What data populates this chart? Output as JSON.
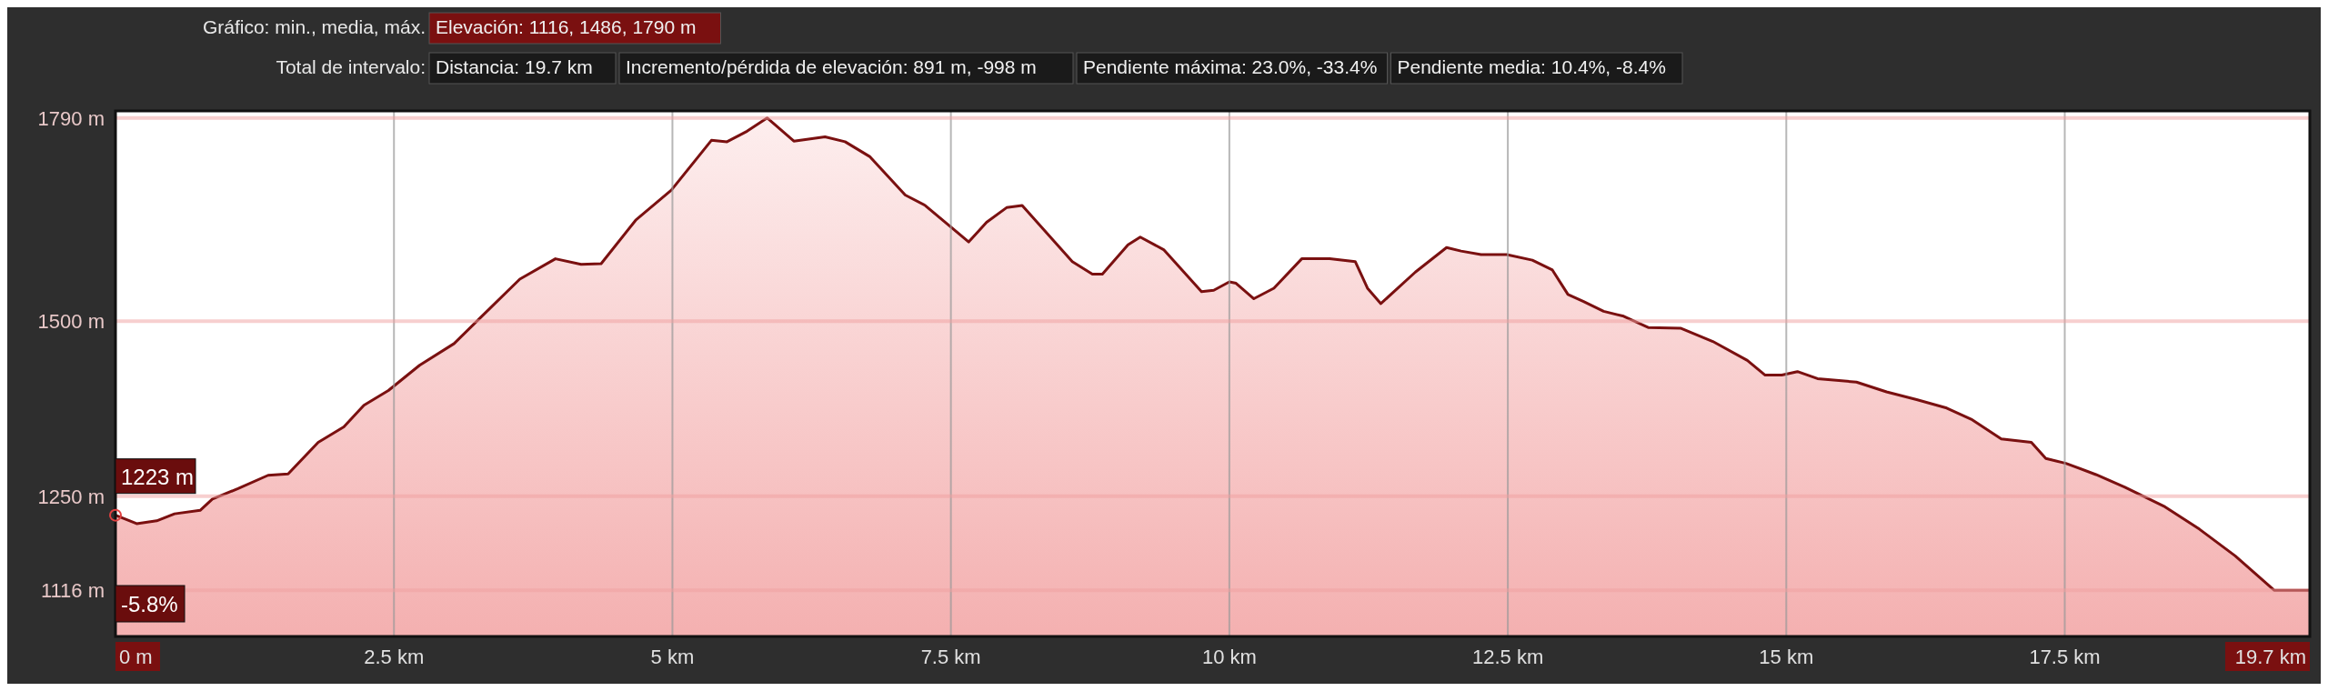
{
  "chart_data": {
    "type": "area",
    "color": "#7a1010",
    "x": [
      0,
      0.19,
      0.37,
      0.53,
      0.76,
      0.87,
      1.1,
      1.37,
      1.55,
      1.82,
      2.05,
      2.23,
      2.45,
      2.73,
      3.04,
      3.27,
      3.63,
      3.95,
      4.18,
      4.36,
      4.67,
      4.99,
      5.35,
      5.49,
      5.67,
      5.85,
      6.09,
      6.37,
      6.55,
      6.77,
      7.09,
      7.27,
      7.66,
      7.82,
      8.0,
      8.14,
      8.59,
      8.77,
      8.86,
      9.09,
      9.2,
      9.41,
      9.75,
      9.86,
      10.0,
      10.06,
      10.22,
      10.4,
      10.65,
      10.9,
      11.13,
      11.24,
      11.36,
      11.67,
      11.95,
      12.08,
      12.26,
      12.49,
      12.72,
      12.9,
      13.04,
      13.18,
      13.36,
      13.54,
      13.76,
      14.05,
      14.34,
      14.65,
      14.81,
      14.96,
      15.1,
      15.28,
      15.63,
      15.9,
      16.17,
      16.44,
      16.66,
      16.93,
      17.2,
      17.33,
      17.51,
      17.78,
      18.04,
      18.4,
      18.71,
      19.03,
      19.38,
      19.7
    ],
    "values": [
      1223,
      1211,
      1215,
      1225,
      1230,
      1246,
      1261,
      1280,
      1282,
      1327,
      1349,
      1380,
      1401,
      1437,
      1468,
      1504,
      1560,
      1589,
      1581,
      1582,
      1644,
      1687,
      1758,
      1756,
      1771,
      1790,
      1757,
      1763,
      1756,
      1735,
      1680,
      1665,
      1613,
      1641,
      1662,
      1665,
      1585,
      1567,
      1567,
      1609,
      1620,
      1602,
      1542,
      1544,
      1556,
      1554,
      1532,
      1547,
      1589,
      1589,
      1585,
      1547,
      1525,
      1570,
      1605,
      1600,
      1595,
      1595,
      1587,
      1573,
      1538,
      1528,
      1514,
      1507,
      1491,
      1490,
      1471,
      1444,
      1423,
      1423,
      1428,
      1418,
      1413,
      1399,
      1388,
      1376,
      1360,
      1332,
      1327,
      1304,
      1297,
      1281,
      1263,
      1235,
      1203,
      1165,
      1116,
      1116
    ],
    "xlim": [
      0,
      19.7
    ],
    "xticks": [
      {
        "value": 0,
        "label": "0 m"
      },
      {
        "value": 2.5,
        "label": "2.5 km"
      },
      {
        "value": 5,
        "label": "5 km"
      },
      {
        "value": 7.5,
        "label": "7.5 km"
      },
      {
        "value": 10,
        "label": "10 km"
      },
      {
        "value": 12.5,
        "label": "12.5 km"
      },
      {
        "value": 15,
        "label": "15 km"
      },
      {
        "value": 17.5,
        "label": "17.5 km"
      },
      {
        "value": 19.7,
        "label": "19.7 km"
      }
    ],
    "ylim": [
      1050,
      1800
    ],
    "yticks": [
      {
        "value": 1116,
        "label": "1116 m"
      },
      {
        "value": 1250,
        "label": "1250 m"
      },
      {
        "value": 1500,
        "label": "1500 m"
      },
      {
        "value": 1790,
        "label": "1790 m"
      }
    ],
    "grid": true,
    "annotations": [
      "Gráfico: min., media, máx.",
      "Elevación: 1116, 1486, 1790 m",
      "Total de intervalo:",
      "Distancia: 19.7 km",
      "Incremento/pérdida de elevación: 891 m, -998 m",
      "Pendiente máxima: 23.0%, -33.4%",
      "Pendiente media: 10.4%, -8.4%",
      "-5.8%",
      {
        "text": "1223 m",
        "x": 0,
        "y": 1223
      }
    ]
  }
}
